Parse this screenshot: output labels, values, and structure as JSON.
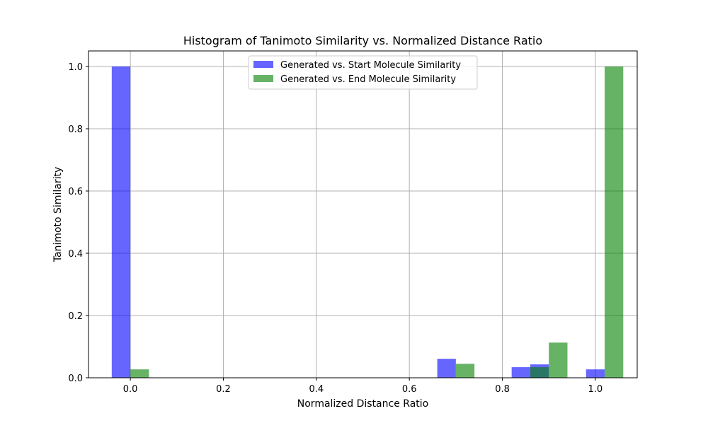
{
  "chart_data": {
    "type": "bar",
    "title": "Histogram of Tanimoto Similarity vs. Normalized Distance Ratio",
    "xlabel": "Normalized Distance Ratio",
    "ylabel": "Tanimoto Similarity",
    "xlim": [
      -0.09,
      1.09
    ],
    "ylim": [
      0,
      1.05
    ],
    "xticks": [
      0.0,
      0.2,
      0.4,
      0.6,
      0.8,
      1.0
    ],
    "xtick_labels": [
      "0.0",
      "0.2",
      "0.4",
      "0.6",
      "0.8",
      "1.0"
    ],
    "yticks": [
      0.0,
      0.2,
      0.4,
      0.6,
      0.8,
      1.0
    ],
    "ytick_labels": [
      "0.0",
      "0.2",
      "0.4",
      "0.6",
      "0.8",
      "1.0"
    ],
    "grid": true,
    "legend_position": "top-center",
    "bar_width": 0.04,
    "series": [
      {
        "name": "Generated vs. Start Molecule Similarity",
        "color": "#0000ff",
        "opacity": 0.6,
        "x": [
          -0.02,
          0.68,
          0.84,
          0.88,
          1.0
        ],
        "values": [
          1.0,
          0.061,
          0.034,
          0.043,
          0.027
        ]
      },
      {
        "name": "Generated vs. End Molecule Similarity",
        "color": "#008000",
        "opacity": 0.6,
        "x": [
          0.02,
          0.72,
          0.88,
          0.92,
          1.04
        ],
        "values": [
          0.027,
          0.045,
          0.034,
          0.113,
          1.0
        ]
      }
    ]
  }
}
